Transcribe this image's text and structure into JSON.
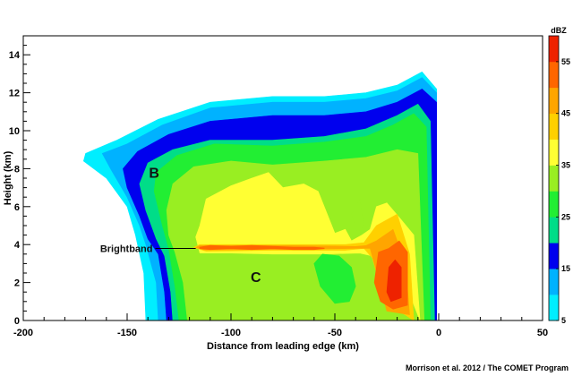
{
  "chart_data": {
    "type": "contour",
    "xlabel": "Distance from leading edge (km)",
    "ylabel": "Height (km)",
    "xlim": [
      -200,
      50
    ],
    "ylim": [
      0,
      15
    ],
    "xticks": [
      -200,
      -150,
      -100,
      -50,
      0,
      50
    ],
    "yticks": [
      0,
      2,
      4,
      6,
      8,
      10,
      12,
      14
    ],
    "grid": false,
    "colorbar": {
      "title": "dBZ",
      "range": [
        5,
        60
      ],
      "tick_labels": [
        5,
        15,
        25,
        35,
        45,
        55
      ],
      "colors": [
        "#00eeff",
        "#00b2ff",
        "#0000ee",
        "#00dd88",
        "#22ee33",
        "#99ee22",
        "#ffff33",
        "#ffd000",
        "#ffa500",
        "#ff6600",
        "#ee2200"
      ]
    },
    "annotations": [
      {
        "text": "B",
        "x": -137,
        "y": 7.8
      },
      {
        "text": "C",
        "x": -88,
        "y": 2.3
      },
      {
        "text": "Brightband",
        "x": -163,
        "y": 3.8,
        "arrow_to": [
          -117,
          3.8
        ]
      }
    ],
    "levels": [
      {
        "dbz": 5,
        "color": "#00eeff",
        "x": [
          -1,
          -1,
          -8,
          -20,
          -35,
          -55,
          -80,
          -110,
          -135,
          -155,
          -170,
          -171,
          -160,
          -150,
          -146,
          -142,
          -141
        ],
        "y": [
          0,
          12.2,
          13.1,
          12.4,
          12.0,
          11.8,
          11.8,
          11.5,
          10.6,
          9.5,
          8.8,
          8.4,
          7.5,
          6.0,
          4.5,
          2.5,
          0
        ]
      },
      {
        "dbz": 10,
        "color": "#00b2ff",
        "x": [
          -1,
          -1,
          -8,
          -20,
          -35,
          -55,
          -80,
          -110,
          -133,
          -150,
          -162,
          -158,
          -150,
          -144,
          -141,
          -136,
          -135
        ],
        "y": [
          0,
          12.0,
          12.8,
          12.1,
          11.7,
          11.5,
          11.5,
          11.2,
          10.3,
          9.3,
          8.8,
          8.0,
          6.5,
          5.0,
          4.0,
          2.0,
          0
        ]
      },
      {
        "dbz": 15,
        "color": "#0000ee",
        "x": [
          -1,
          -1,
          -8,
          -20,
          -35,
          -55,
          -80,
          -110,
          -130,
          -145,
          -152,
          -150,
          -144,
          -140,
          -135,
          -132,
          -131
        ],
        "y": [
          0,
          11.5,
          12.2,
          11.5,
          11.0,
          10.8,
          10.8,
          10.5,
          9.8,
          8.9,
          8.0,
          7.0,
          5.5,
          4.3,
          3.5,
          1.5,
          0
        ]
      },
      {
        "dbz": 20,
        "color": "#00dd88",
        "x": [
          -2,
          -4,
          -10,
          -20,
          -35,
          -55,
          -80,
          -110,
          -128,
          -140,
          -144,
          -141,
          -136,
          -132,
          -129,
          -128
        ],
        "y": [
          0,
          10.5,
          11.4,
          10.8,
          10.1,
          9.7,
          9.5,
          9.5,
          9.0,
          8.3,
          7.2,
          5.8,
          4.3,
          3.4,
          1.5,
          0
        ]
      },
      {
        "dbz": 25,
        "color": "#22ee33",
        "x": [
          -4,
          -6,
          -12,
          -22,
          -35,
          -55,
          -80,
          -108,
          -126,
          -136,
          -137,
          -133,
          -130,
          -127,
          -125
        ],
        "y": [
          0,
          10.2,
          10.9,
          10.3,
          9.7,
          9.4,
          9.2,
          9.3,
          8.7,
          7.8,
          6.8,
          5.0,
          3.8,
          1.8,
          0
        ]
      },
      {
        "dbz": 30,
        "color": "#99ee22",
        "x": [
          -7,
          -10,
          -20,
          -35,
          -55,
          -80,
          -100,
          -118,
          -128,
          -131,
          -130,
          -127,
          -123,
          -121
        ],
        "y": [
          0,
          8.8,
          9.0,
          8.6,
          8.4,
          8.2,
          8.4,
          8.1,
          7.2,
          5.8,
          4.5,
          3.6,
          2.0,
          0
        ]
      },
      {
        "dbz": 35,
        "color": "#ffff33",
        "x": [
          -9,
          -12,
          -18,
          -25,
          -30,
          -33,
          -37,
          -42,
          -45,
          -50,
          -58,
          -65,
          -75,
          -82,
          -90,
          -100,
          -112,
          -115,
          -117,
          -115,
          -100,
          -80,
          -55,
          -38,
          -28,
          -18,
          -9
        ],
        "y": [
          0,
          4.5,
          5.3,
          6.2,
          6.0,
          4.8,
          4.5,
          4.2,
          4.8,
          4.6,
          6.8,
          7.2,
          7.0,
          7.8,
          7.5,
          7.1,
          6.4,
          5.0,
          4.4,
          3.55,
          3.55,
          3.5,
          3.5,
          3.55,
          3.3,
          2.5,
          0
        ]
      },
      {
        "dbz": 40,
        "color": "#ffd000",
        "x": [
          -12,
          -14,
          -20,
          -30,
          -36,
          -45,
          -80,
          -115,
          -118,
          -112,
          -80,
          -45,
          -36,
          -32,
          -26,
          -12
        ],
        "y": [
          0,
          3.5,
          5.6,
          5.0,
          4.1,
          4.0,
          4.0,
          4.0,
          3.85,
          3.65,
          3.7,
          3.7,
          3.8,
          3.3,
          1.0,
          0
        ]
      },
      {
        "dbz": 45,
        "color": "#ffa500",
        "x": [
          -14,
          -16,
          -22,
          -30,
          -35,
          -40,
          -70,
          -115,
          -117,
          -113,
          -70,
          -40,
          -33,
          -31,
          -25,
          -14
        ],
        "y": [
          0.3,
          3.0,
          4.8,
          4.2,
          3.95,
          3.9,
          3.95,
          3.95,
          3.85,
          3.72,
          3.75,
          3.8,
          3.8,
          3.0,
          0.5,
          0.3
        ]
      },
      {
        "dbz": 50,
        "color": "#ff6600",
        "x": [
          -15,
          -15,
          -19,
          -24,
          -29,
          -31,
          -28,
          -22,
          -15
        ],
        "y": [
          0.8,
          3.6,
          4.2,
          3.8,
          3.6,
          2.0,
          1.0,
          0.6,
          0.8
        ]
      },
      {
        "dbz": 55,
        "color": "#ee2200",
        "x": [
          -18,
          -18,
          -21,
          -24,
          -25,
          -23,
          -18
        ],
        "y": [
          1.2,
          2.8,
          3.2,
          2.8,
          1.5,
          1.0,
          1.2
        ]
      }
    ],
    "bright_band_core": {
      "color": "#ff6600",
      "x": [
        -115,
        -110,
        -100,
        -90,
        -80,
        -70,
        -60,
        -55,
        -60,
        -70,
        -80,
        -90,
        -100,
        -110,
        -115
      ],
      "y": [
        3.85,
        3.95,
        3.9,
        3.95,
        3.9,
        3.85,
        3.85,
        3.8,
        3.75,
        3.75,
        3.8,
        3.75,
        3.8,
        3.75,
        3.8
      ]
    },
    "inner_cells": [
      {
        "color": "#22ee33",
        "x": [
          -60,
          -56,
          -48,
          -42,
          -40,
          -43,
          -50,
          -57,
          -60
        ],
        "y": [
          3.0,
          3.5,
          3.4,
          2.8,
          1.8,
          1.0,
          0.9,
          1.8,
          3.0
        ]
      },
      {
        "color": "#99ee22",
        "x": [
          -42,
          -38,
          -36,
          -39,
          -42
        ],
        "y": [
          5.6,
          6.4,
          5.0,
          4.6,
          5.6
        ]
      }
    ],
    "credit": "Morrison et al. 2012 / The COMET Program"
  }
}
